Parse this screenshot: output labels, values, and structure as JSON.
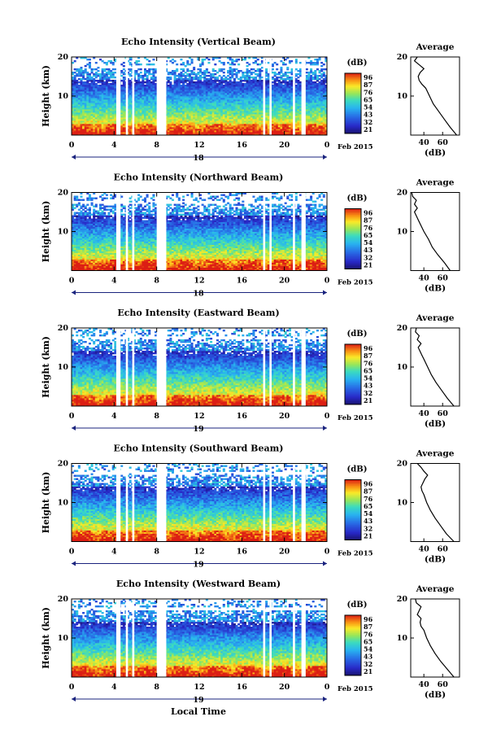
{
  "figure": {
    "x_axis_label": "Local Time",
    "date_suffix": "Feb 2015",
    "colorbar_unit": "(dB)",
    "colorbar_ticks": [
      "96",
      "87",
      "76",
      "65",
      "54",
      "43",
      "32",
      "21"
    ],
    "y_axis_label": "Height (km)",
    "average_title": "Average",
    "average_xlabel": "(dB)"
  },
  "chart_data": [
    {
      "type": "heatmap",
      "title": "Echo Intensity (Vertical Beam)",
      "ylabel": "Height (km)",
      "xlabel": "",
      "x_ticks": [
        "0",
        "4",
        "8",
        "12",
        "16",
        "20",
        "0"
      ],
      "y_ticks": [
        "20",
        "10"
      ],
      "date_label": "18",
      "xlim": [
        0,
        24
      ],
      "ylim": [
        0,
        20
      ],
      "color_range_db": [
        21,
        96
      ],
      "data_gaps_hours": [
        [
          4.2,
          4.6
        ],
        [
          5.1,
          5.3
        ],
        [
          5.7,
          5.9
        ],
        [
          8.0,
          8.9
        ],
        [
          18.0,
          18.2
        ],
        [
          18.6,
          18.8
        ],
        [
          20.8,
          21.0
        ],
        [
          21.6,
          22.0
        ]
      ],
      "average_profile": {
        "title": "Average",
        "xlabel": "(dB)",
        "x_ticks": [
          "40",
          "60"
        ],
        "y_ticks": [
          "20",
          "10"
        ],
        "height_km": [
          0,
          2,
          4,
          6,
          8,
          10,
          12,
          13,
          14,
          15,
          16,
          17,
          18,
          19,
          20
        ],
        "values_db": [
          75,
          68,
          62,
          56,
          50,
          46,
          42,
          38,
          35,
          34,
          36,
          40,
          35,
          30,
          33
        ]
      }
    },
    {
      "type": "heatmap",
      "title": "Echo Intensity (Northward Beam)",
      "ylabel": "Height (km)",
      "xlabel": "",
      "x_ticks": [
        "0",
        "4",
        "8",
        "12",
        "16",
        "20",
        "0"
      ],
      "y_ticks": [
        "20",
        "10"
      ],
      "date_label": "18",
      "xlim": [
        0,
        24
      ],
      "ylim": [
        0,
        20
      ],
      "color_range_db": [
        21,
        96
      ],
      "data_gaps_hours": [
        [
          4.2,
          4.6
        ],
        [
          5.1,
          5.3
        ],
        [
          5.7,
          5.9
        ],
        [
          8.0,
          8.9
        ],
        [
          18.0,
          18.2
        ],
        [
          18.6,
          18.8
        ],
        [
          20.8,
          21.0
        ],
        [
          21.6,
          22.0
        ]
      ],
      "average_profile": {
        "title": "Average",
        "xlabel": "(dB)",
        "x_ticks": [
          "40",
          "60"
        ],
        "y_ticks": [
          "20",
          "10"
        ],
        "height_km": [
          0,
          2,
          4,
          6,
          8,
          10,
          12,
          13,
          14,
          15,
          16,
          17,
          18,
          19,
          20
        ],
        "values_db": [
          68,
          62,
          55,
          49,
          45,
          40,
          36,
          34,
          32,
          30,
          33,
          30,
          32,
          28,
          27
        ]
      }
    },
    {
      "type": "heatmap",
      "title": "Echo Intensity (Eastward Beam)",
      "ylabel": "Height (km)",
      "xlabel": "",
      "x_ticks": [
        "0",
        "4",
        "8",
        "12",
        "16",
        "20",
        "0"
      ],
      "y_ticks": [
        "20",
        "10"
      ],
      "date_label": "19",
      "xlim": [
        0,
        24
      ],
      "ylim": [
        0,
        20
      ],
      "color_range_db": [
        21,
        96
      ],
      "data_gaps_hours": [
        [
          4.2,
          4.6
        ],
        [
          5.1,
          5.3
        ],
        [
          5.7,
          5.9
        ],
        [
          8.0,
          8.9
        ],
        [
          18.0,
          18.2
        ],
        [
          18.6,
          18.8
        ],
        [
          20.8,
          21.0
        ],
        [
          21.6,
          22.0
        ]
      ],
      "average_profile": {
        "title": "Average",
        "xlabel": "(dB)",
        "x_ticks": [
          "40",
          "60"
        ],
        "y_ticks": [
          "20",
          "10"
        ],
        "height_km": [
          0,
          2,
          4,
          6,
          8,
          10,
          12,
          13,
          14,
          15,
          16,
          17,
          18,
          19,
          20
        ],
        "values_db": [
          72,
          65,
          59,
          53,
          48,
          44,
          40,
          38,
          36,
          34,
          37,
          33,
          35,
          31,
          32
        ]
      }
    },
    {
      "type": "heatmap",
      "title": "Echo Intensity (Southward Beam)",
      "ylabel": "Height (km)",
      "xlabel": "",
      "x_ticks": [
        "0",
        "4",
        "8",
        "12",
        "16",
        "20",
        "0"
      ],
      "y_ticks": [
        "20",
        "10"
      ],
      "date_label": "19",
      "xlim": [
        0,
        24
      ],
      "ylim": [
        0,
        20
      ],
      "color_range_db": [
        21,
        96
      ],
      "data_gaps_hours": [
        [
          4.2,
          4.6
        ],
        [
          5.1,
          5.3
        ],
        [
          5.7,
          5.9
        ],
        [
          8.0,
          8.9
        ],
        [
          18.0,
          18.2
        ],
        [
          18.6,
          18.8
        ],
        [
          20.8,
          21.0
        ],
        [
          21.6,
          22.0
        ]
      ],
      "average_profile": {
        "title": "Average",
        "xlabel": "(dB)",
        "x_ticks": [
          "40",
          "60"
        ],
        "y_ticks": [
          "20",
          "10"
        ],
        "height_km": [
          0,
          2,
          4,
          6,
          8,
          10,
          12,
          13,
          14,
          15,
          16,
          17,
          18,
          19,
          20
        ],
        "values_db": [
          72,
          64,
          58,
          52,
          47,
          43,
          40,
          38,
          37,
          39,
          41,
          44,
          40,
          37,
          33
        ]
      }
    },
    {
      "type": "heatmap",
      "title": "Echo Intensity (Westward Beam)",
      "ylabel": "Height (km)",
      "xlabel": "Local Time",
      "x_ticks": [
        "0",
        "4",
        "8",
        "12",
        "16",
        "20",
        "0"
      ],
      "y_ticks": [
        "20",
        "10"
      ],
      "date_label": "19",
      "xlim": [
        0,
        24
      ],
      "ylim": [
        0,
        20
      ],
      "color_range_db": [
        21,
        96
      ],
      "data_gaps_hours": [
        [
          4.2,
          4.6
        ],
        [
          5.1,
          5.3
        ],
        [
          5.7,
          5.9
        ],
        [
          8.0,
          8.9
        ],
        [
          18.0,
          18.2
        ],
        [
          18.6,
          18.8
        ],
        [
          20.8,
          21.0
        ],
        [
          21.6,
          22.0
        ]
      ],
      "average_profile": {
        "title": "Average",
        "xlabel": "(dB)",
        "x_ticks": [
          "40",
          "60"
        ],
        "y_ticks": [
          "20",
          "10"
        ],
        "height_km": [
          0,
          2,
          4,
          6,
          8,
          10,
          12,
          13,
          14,
          15,
          16,
          17,
          18,
          19,
          20
        ],
        "values_db": [
          72,
          65,
          58,
          52,
          47,
          43,
          40,
          37,
          36,
          37,
          33,
          35,
          37,
          32,
          31
        ]
      }
    }
  ]
}
